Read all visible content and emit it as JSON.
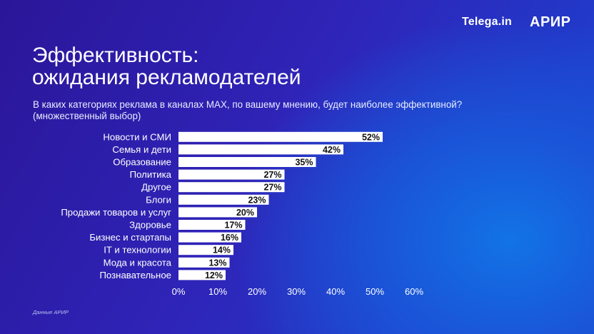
{
  "header": {
    "brand_left": "Telega.in",
    "brand_right": "АРИР"
  },
  "title_lines": [
    "Эффективность:",
    "ожидания рекламодателей"
  ],
  "subtitle_lines": [
    "В каких категориях реклама в каналах MAX, по вашему мнению, будет наиболее эффективной?",
    "(множественный выбор)"
  ],
  "footnote": "Данные АРИР",
  "colors": {
    "bar": "#ffffff",
    "bar_label_text": "#111111",
    "text": "#ffffff"
  },
  "chart_data": {
    "type": "bar",
    "orientation": "horizontal",
    "categories": [
      "Новости и СМИ",
      "Семья и дети",
      "Образование",
      "Политика",
      "Другое",
      "Блоги",
      "Продажи товаров и услуг",
      "Здоровье",
      "Бизнес и стартапы",
      "IT и технологии",
      "Мода и красота",
      "Познавательное"
    ],
    "values": [
      52,
      42,
      35,
      27,
      27,
      23,
      20,
      17,
      16,
      14,
      13,
      12
    ],
    "value_labels": [
      "52%",
      "42%",
      "35%",
      "27%",
      "27%",
      "23%",
      "20%",
      "17%",
      "16%",
      "14%",
      "13%",
      "12%"
    ],
    "xlim": [
      0,
      60
    ],
    "x_ticks": [
      0,
      10,
      20,
      30,
      40,
      50,
      60
    ],
    "x_tick_labels": [
      "0%",
      "10%",
      "20%",
      "30%",
      "40%",
      "50%",
      "60%"
    ],
    "grid": false,
    "legend": "none"
  }
}
